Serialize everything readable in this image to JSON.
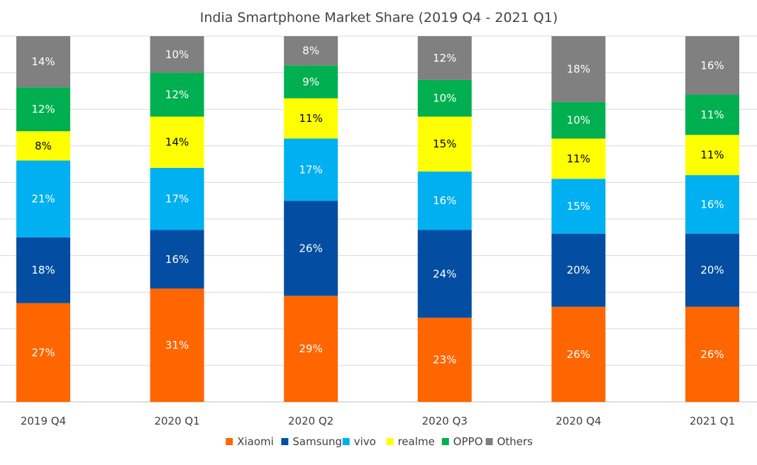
{
  "chart_data": {
    "type": "bar",
    "stacked": true,
    "title": "India Smartphone Market Share (2019 Q4 - 2021 Q1)",
    "xlabel": "",
    "ylabel": "",
    "ylim": [
      0,
      100
    ],
    "grid": true,
    "legend_position": "bottom",
    "categories": [
      "2019 Q4",
      "2020 Q1",
      "2020 Q2",
      "2020 Q3",
      "2020 Q4",
      "2021 Q1"
    ],
    "series": [
      {
        "name": "Xiaomi",
        "color": "#ff6600",
        "label_color": "#ffffff",
        "values": [
          27,
          31,
          29,
          23,
          26,
          26
        ]
      },
      {
        "name": "Samsung",
        "color": "#034ea2",
        "label_color": "#ffffff",
        "values": [
          18,
          16,
          26,
          24,
          20,
          20
        ]
      },
      {
        "name": "vivo",
        "color": "#00b0f0",
        "label_color": "#ffffff",
        "values": [
          21,
          17,
          17,
          16,
          15,
          16
        ]
      },
      {
        "name": "realme",
        "color": "#ffff00",
        "label_color": "#000000",
        "values": [
          8,
          14,
          11,
          15,
          11,
          11
        ]
      },
      {
        "name": "OPPO",
        "color": "#00b050",
        "label_color": "#ffffff",
        "values": [
          12,
          12,
          9,
          10,
          10,
          11
        ]
      },
      {
        "name": "Others",
        "color": "#808080",
        "label_color": "#ffffff",
        "values": [
          14,
          10,
          8,
          12,
          18,
          16
        ]
      }
    ],
    "data_labels": [
      [
        "27%",
        "31%",
        "29%",
        "23%",
        "26%",
        "26%"
      ],
      [
        "18%",
        "16%",
        "26%",
        "24%",
        "20%",
        "20%"
      ],
      [
        "21%",
        "17%",
        "17%",
        "16%",
        "15%",
        "16%"
      ],
      [
        "8%",
        "14%",
        "11%",
        "15%",
        "11%",
        "11%"
      ],
      [
        "12%",
        "12%",
        "9%",
        "10%",
        "10%",
        "11%"
      ],
      [
        "14%",
        "10%",
        "8%",
        "12%",
        "18%",
        "16%"
      ]
    ]
  }
}
